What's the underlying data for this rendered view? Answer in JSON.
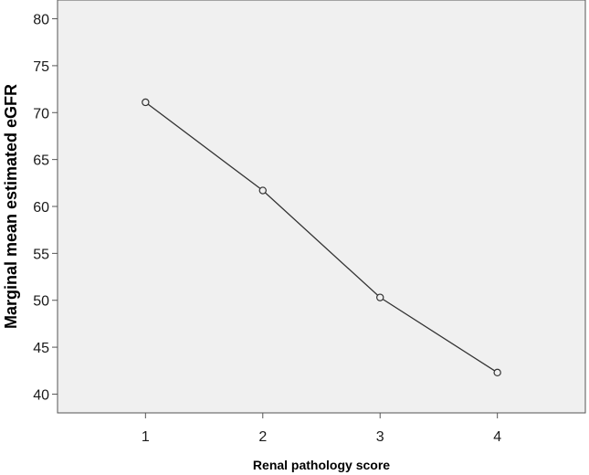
{
  "chart_data": {
    "type": "line",
    "title": "",
    "xlabel": "Renal pathology score",
    "ylabel": "Marginal mean estimated eGFR",
    "x": [
      1,
      2,
      3,
      4
    ],
    "x_tick_labels": [
      "1",
      "2",
      "3",
      "4"
    ],
    "xlim": [
      0.25,
      4.75
    ],
    "ylim": [
      38,
      82
    ],
    "y_ticks": [
      40,
      45,
      50,
      55,
      60,
      65,
      70,
      75,
      80
    ],
    "y_tick_labels": [
      "40",
      "45",
      "50",
      "55",
      "60",
      "65",
      "70",
      "75",
      "80"
    ],
    "series": [
      {
        "values": [
          71.1,
          61.7,
          50.3,
          42.3
        ],
        "marker": "open-circle",
        "color": "#333333"
      }
    ],
    "grid": false,
    "legend": "none",
    "colors": {
      "plot_background": "#f0f0f0",
      "frame": "#555555",
      "line": "#333333"
    }
  }
}
